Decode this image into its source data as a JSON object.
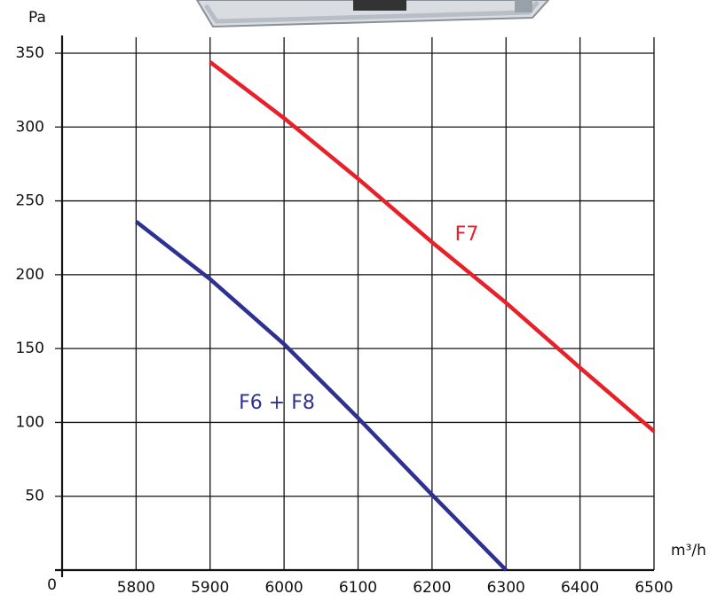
{
  "chart_data": {
    "type": "line",
    "y_label": "Pa",
    "x_label": "m³/h",
    "x": [
      5800,
      5900,
      6000,
      6100,
      6200,
      6300,
      6400,
      6500
    ],
    "series": [
      {
        "name": "F7",
        "color": "#e8202a",
        "values": [
          null,
          344,
          306,
          265,
          222,
          181,
          137,
          94
        ]
      },
      {
        "name": "F6 + F8",
        "color": "#2e3192",
        "values": [
          236,
          197,
          153,
          103,
          51,
          0,
          null,
          null
        ]
      }
    ],
    "xlim": [
      5700,
      6500
    ],
    "xticks": [
      5800,
      5900,
      6000,
      6100,
      6200,
      6300,
      6400,
      6500
    ],
    "ylim": [
      0,
      350
    ],
    "yticks": [
      0,
      50,
      100,
      150,
      200,
      250,
      300,
      350
    ],
    "grid": true
  }
}
